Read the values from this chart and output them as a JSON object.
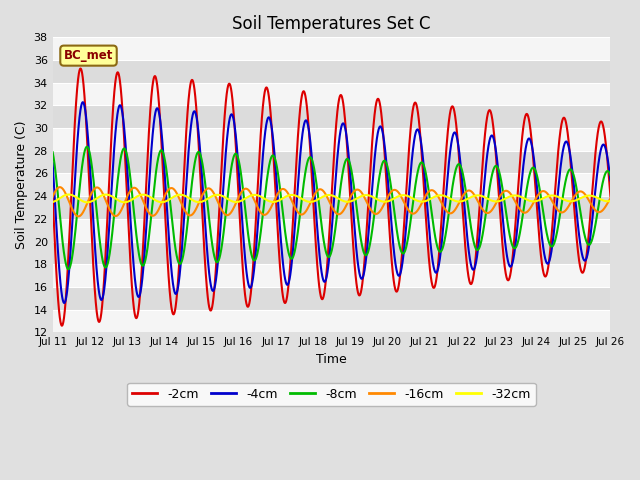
{
  "title": "Soil Temperatures Set C",
  "xlabel": "Time",
  "ylabel": "Soil Temperature (C)",
  "ylim": [
    12,
    38
  ],
  "xlim_days": [
    0,
    15
  ],
  "tick_positions": [
    0,
    1,
    2,
    3,
    4,
    5,
    6,
    7,
    8,
    9,
    10,
    11,
    12,
    13,
    14,
    15
  ],
  "tick_labels": [
    "Jul 11",
    "Jul 12",
    "Jul 13",
    "Jul 14",
    "Jul 15",
    "Jul 16",
    "Jul 17",
    "Jul 18",
    "Jul 19",
    "Jul 20",
    "Jul 21",
    "Jul 22",
    "Jul 23",
    "Jul 24",
    "Jul 25",
    "Jul 26"
  ],
  "yticks": [
    12,
    14,
    16,
    18,
    20,
    22,
    24,
    26,
    28,
    30,
    32,
    34,
    36,
    38
  ],
  "lines": [
    {
      "label": "-2cm",
      "color": "#dd0000",
      "mean": 24.0,
      "amplitude_start": 11.5,
      "amplitude_end": 6.5,
      "phase": 4.71,
      "depth_factor": 0.0
    },
    {
      "label": "-4cm",
      "color": "#0000cc",
      "mean": 23.5,
      "amplitude_start": 9.0,
      "amplitude_end": 5.0,
      "phase": 5.1,
      "depth_factor": 0.0
    },
    {
      "label": "-8cm",
      "color": "#00bb00",
      "mean": 23.0,
      "amplitude_start": 5.5,
      "amplitude_end": 3.2,
      "phase": 5.8,
      "depth_factor": 0.0
    },
    {
      "label": "-16cm",
      "color": "#ff8800",
      "mean": 23.5,
      "amplitude_start": 1.3,
      "amplitude_end": 0.9,
      "phase": 7.5,
      "depth_factor": 0.0
    },
    {
      "label": "-32cm",
      "color": "#ffff00",
      "mean": 23.8,
      "amplitude_start": 0.35,
      "amplitude_end": 0.25,
      "phase": 9.0,
      "depth_factor": 0.0
    }
  ],
  "legend_label": "BC_met",
  "bg_color_fig": "#e0e0e0",
  "stripe_light": "#f5f5f5",
  "stripe_dark": "#dcdcdc",
  "linewidth": 1.5,
  "n_points": 3600
}
